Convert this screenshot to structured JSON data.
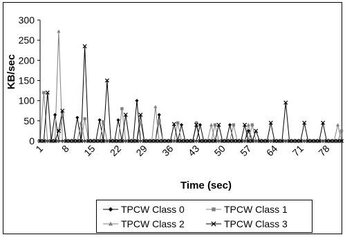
{
  "chart_data": {
    "type": "line",
    "xlabel": "Time (sec)",
    "ylabel": "KB/sec",
    "ylim": [
      0,
      300
    ],
    "yticks": [
      0,
      50,
      100,
      150,
      200,
      250,
      300
    ],
    "x_tick_labels": [
      "1",
      "8",
      "15",
      "22",
      "29",
      "36",
      "43",
      "50",
      "57",
      "64",
      "71",
      "78"
    ],
    "x": [
      1,
      2,
      3,
      4,
      5,
      6,
      7,
      8,
      9,
      10,
      11,
      12,
      13,
      14,
      15,
      16,
      17,
      18,
      19,
      20,
      21,
      22,
      23,
      24,
      25,
      26,
      27,
      28,
      29,
      30,
      31,
      32,
      33,
      34,
      35,
      36,
      37,
      38,
      39,
      40,
      41,
      42,
      43,
      44,
      45,
      46,
      47,
      48,
      49,
      50,
      51,
      52,
      53,
      54,
      55,
      56,
      57,
      58,
      59,
      60,
      61,
      62,
      63,
      64,
      65,
      66,
      67,
      68,
      69,
      70,
      71,
      72,
      73,
      74,
      75,
      76,
      77,
      78,
      79,
      80,
      81,
      82
    ],
    "grid": false,
    "legend_position": "bottom",
    "series": [
      {
        "name": "TPCW Class 0",
        "color": "#000000",
        "marker": "diamond",
        "values": [
          0,
          0,
          0,
          0,
          65,
          0,
          0,
          0,
          0,
          0,
          58,
          0,
          0,
          0,
          0,
          0,
          52,
          0,
          0,
          0,
          0,
          52,
          0,
          0,
          0,
          0,
          100,
          0,
          0,
          0,
          0,
          0,
          65,
          0,
          0,
          0,
          0,
          0,
          40,
          0,
          0,
          0,
          0,
          40,
          0,
          0,
          0,
          0,
          0,
          0,
          0,
          40,
          0,
          0,
          0,
          0,
          25,
          0,
          0,
          0,
          0,
          0,
          0,
          0,
          0,
          0,
          0,
          0,
          0,
          0,
          0,
          0,
          0,
          0,
          0,
          0,
          0,
          0,
          0,
          0,
          0,
          0
        ]
      },
      {
        "name": "TPCW Class 1",
        "color": "#808080",
        "marker": "square",
        "values": [
          0,
          120,
          0,
          0,
          0,
          0,
          65,
          0,
          0,
          0,
          0,
          0,
          55,
          0,
          0,
          0,
          0,
          48,
          0,
          0,
          0,
          0,
          80,
          0,
          0,
          0,
          0,
          45,
          0,
          0,
          0,
          0,
          45,
          0,
          0,
          0,
          0,
          45,
          0,
          0,
          0,
          0,
          45,
          0,
          0,
          0,
          0,
          40,
          0,
          0,
          0,
          0,
          40,
          0,
          0,
          0,
          0,
          40,
          0,
          0,
          0,
          0,
          0,
          0,
          0,
          0,
          0,
          0,
          0,
          0,
          0,
          0,
          0,
          0,
          0,
          0,
          0,
          0,
          0,
          0,
          0,
          25
        ]
      },
      {
        "name": "TPCW Class 2",
        "color": "#808080",
        "marker": "triangle",
        "values": [
          0,
          0,
          0,
          0,
          0,
          272,
          0,
          0,
          0,
          0,
          0,
          45,
          0,
          0,
          0,
          0,
          0,
          45,
          0,
          0,
          0,
          0,
          0,
          0,
          0,
          0,
          0,
          0,
          0,
          0,
          0,
          85,
          0,
          0,
          0,
          0,
          0,
          0,
          0,
          0,
          0,
          0,
          0,
          0,
          0,
          0,
          40,
          0,
          0,
          0,
          0,
          0,
          0,
          0,
          0,
          0,
          40,
          0,
          0,
          0,
          0,
          0,
          0,
          0,
          0,
          0,
          0,
          0,
          0,
          0,
          0,
          0,
          0,
          0,
          0,
          0,
          0,
          0,
          0,
          0,
          40,
          0
        ]
      },
      {
        "name": "TPCW Class 3",
        "color": "#000000",
        "marker": "x",
        "values": [
          0,
          0,
          120,
          0,
          0,
          25,
          75,
          0,
          0,
          0,
          0,
          0,
          235,
          0,
          0,
          0,
          0,
          0,
          150,
          0,
          0,
          0,
          0,
          65,
          0,
          0,
          0,
          65,
          0,
          0,
          0,
          0,
          0,
          0,
          0,
          0,
          42,
          0,
          0,
          0,
          0,
          0,
          40,
          0,
          0,
          0,
          0,
          0,
          40,
          0,
          0,
          0,
          0,
          0,
          0,
          40,
          0,
          0,
          25,
          0,
          0,
          0,
          45,
          0,
          0,
          0,
          95,
          0,
          0,
          0,
          0,
          45,
          0,
          0,
          0,
          0,
          45,
          0,
          0,
          0,
          0,
          0
        ]
      }
    ]
  }
}
